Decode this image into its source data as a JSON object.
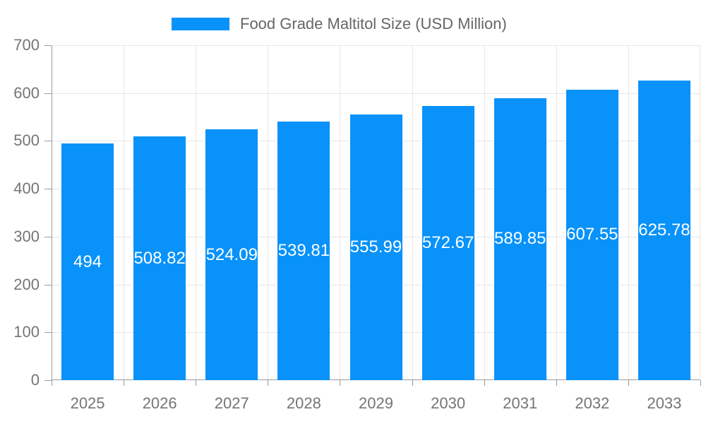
{
  "chart_data": {
    "type": "bar",
    "title": "Food Grade Maltitol Size (USD Million)",
    "legend_position": "top",
    "categories": [
      "2025",
      "2026",
      "2027",
      "2028",
      "2029",
      "2030",
      "2031",
      "2032",
      "2033"
    ],
    "values": [
      494,
      508.82,
      524.09,
      539.81,
      555.99,
      572.67,
      589.85,
      607.55,
      625.78
    ],
    "value_labels": [
      "494",
      "508.82",
      "524.09",
      "539.81",
      "555.99",
      "572.67",
      "589.85",
      "607.55",
      "625.78"
    ],
    "xlabel": "",
    "ylabel": "",
    "ylim": [
      0,
      700
    ],
    "ytick_step": 100,
    "grid": true
  },
  "colors": {
    "bar": "#0892fa",
    "grid": "#e6e6e6",
    "axis": "#9b9b9b",
    "tick_text": "#757575",
    "legend_text": "#666666",
    "value_text": "#ffffff",
    "background": "#ffffff"
  }
}
